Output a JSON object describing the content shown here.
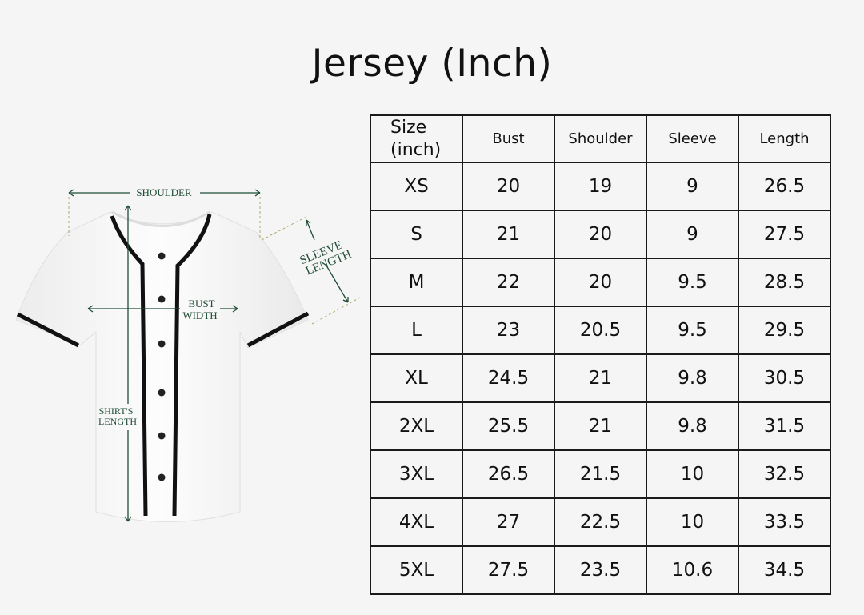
{
  "title": "Jersey (Inch)",
  "diagram": {
    "labels": {
      "shoulder": "SHOULDER",
      "sleeve_1": "SLEEVE",
      "sleeve_2": "LENGTH",
      "bust_1": "BUST",
      "bust_2": "WIDTH",
      "length_1": "SHIRT'S",
      "length_2": "LENGTH"
    },
    "colors": {
      "annotation": "#1f4d36",
      "jersey": "#ffffff",
      "trim": "#111111"
    }
  },
  "table": {
    "headers": [
      "Size",
      "(inch)",
      "Bust",
      "Shoulder",
      "Sleeve",
      "Length"
    ],
    "rows": [
      [
        "XS",
        "20",
        "19",
        "9",
        "26.5"
      ],
      [
        "S",
        "21",
        "20",
        "9",
        "27.5"
      ],
      [
        "M",
        "22",
        "20",
        "9.5",
        "28.5"
      ],
      [
        "L",
        "23",
        "20.5",
        "9.5",
        "29.5"
      ],
      [
        "XL",
        "24.5",
        "21",
        "9.8",
        "30.5"
      ],
      [
        "2XL",
        "25.5",
        "21",
        "9.8",
        "31.5"
      ],
      [
        "3XL",
        "26.5",
        "21.5",
        "10",
        "32.5"
      ],
      [
        "4XL",
        "27",
        "22.5",
        "10",
        "33.5"
      ],
      [
        "5XL",
        "27.5",
        "23.5",
        "10.6",
        "34.5"
      ]
    ]
  }
}
